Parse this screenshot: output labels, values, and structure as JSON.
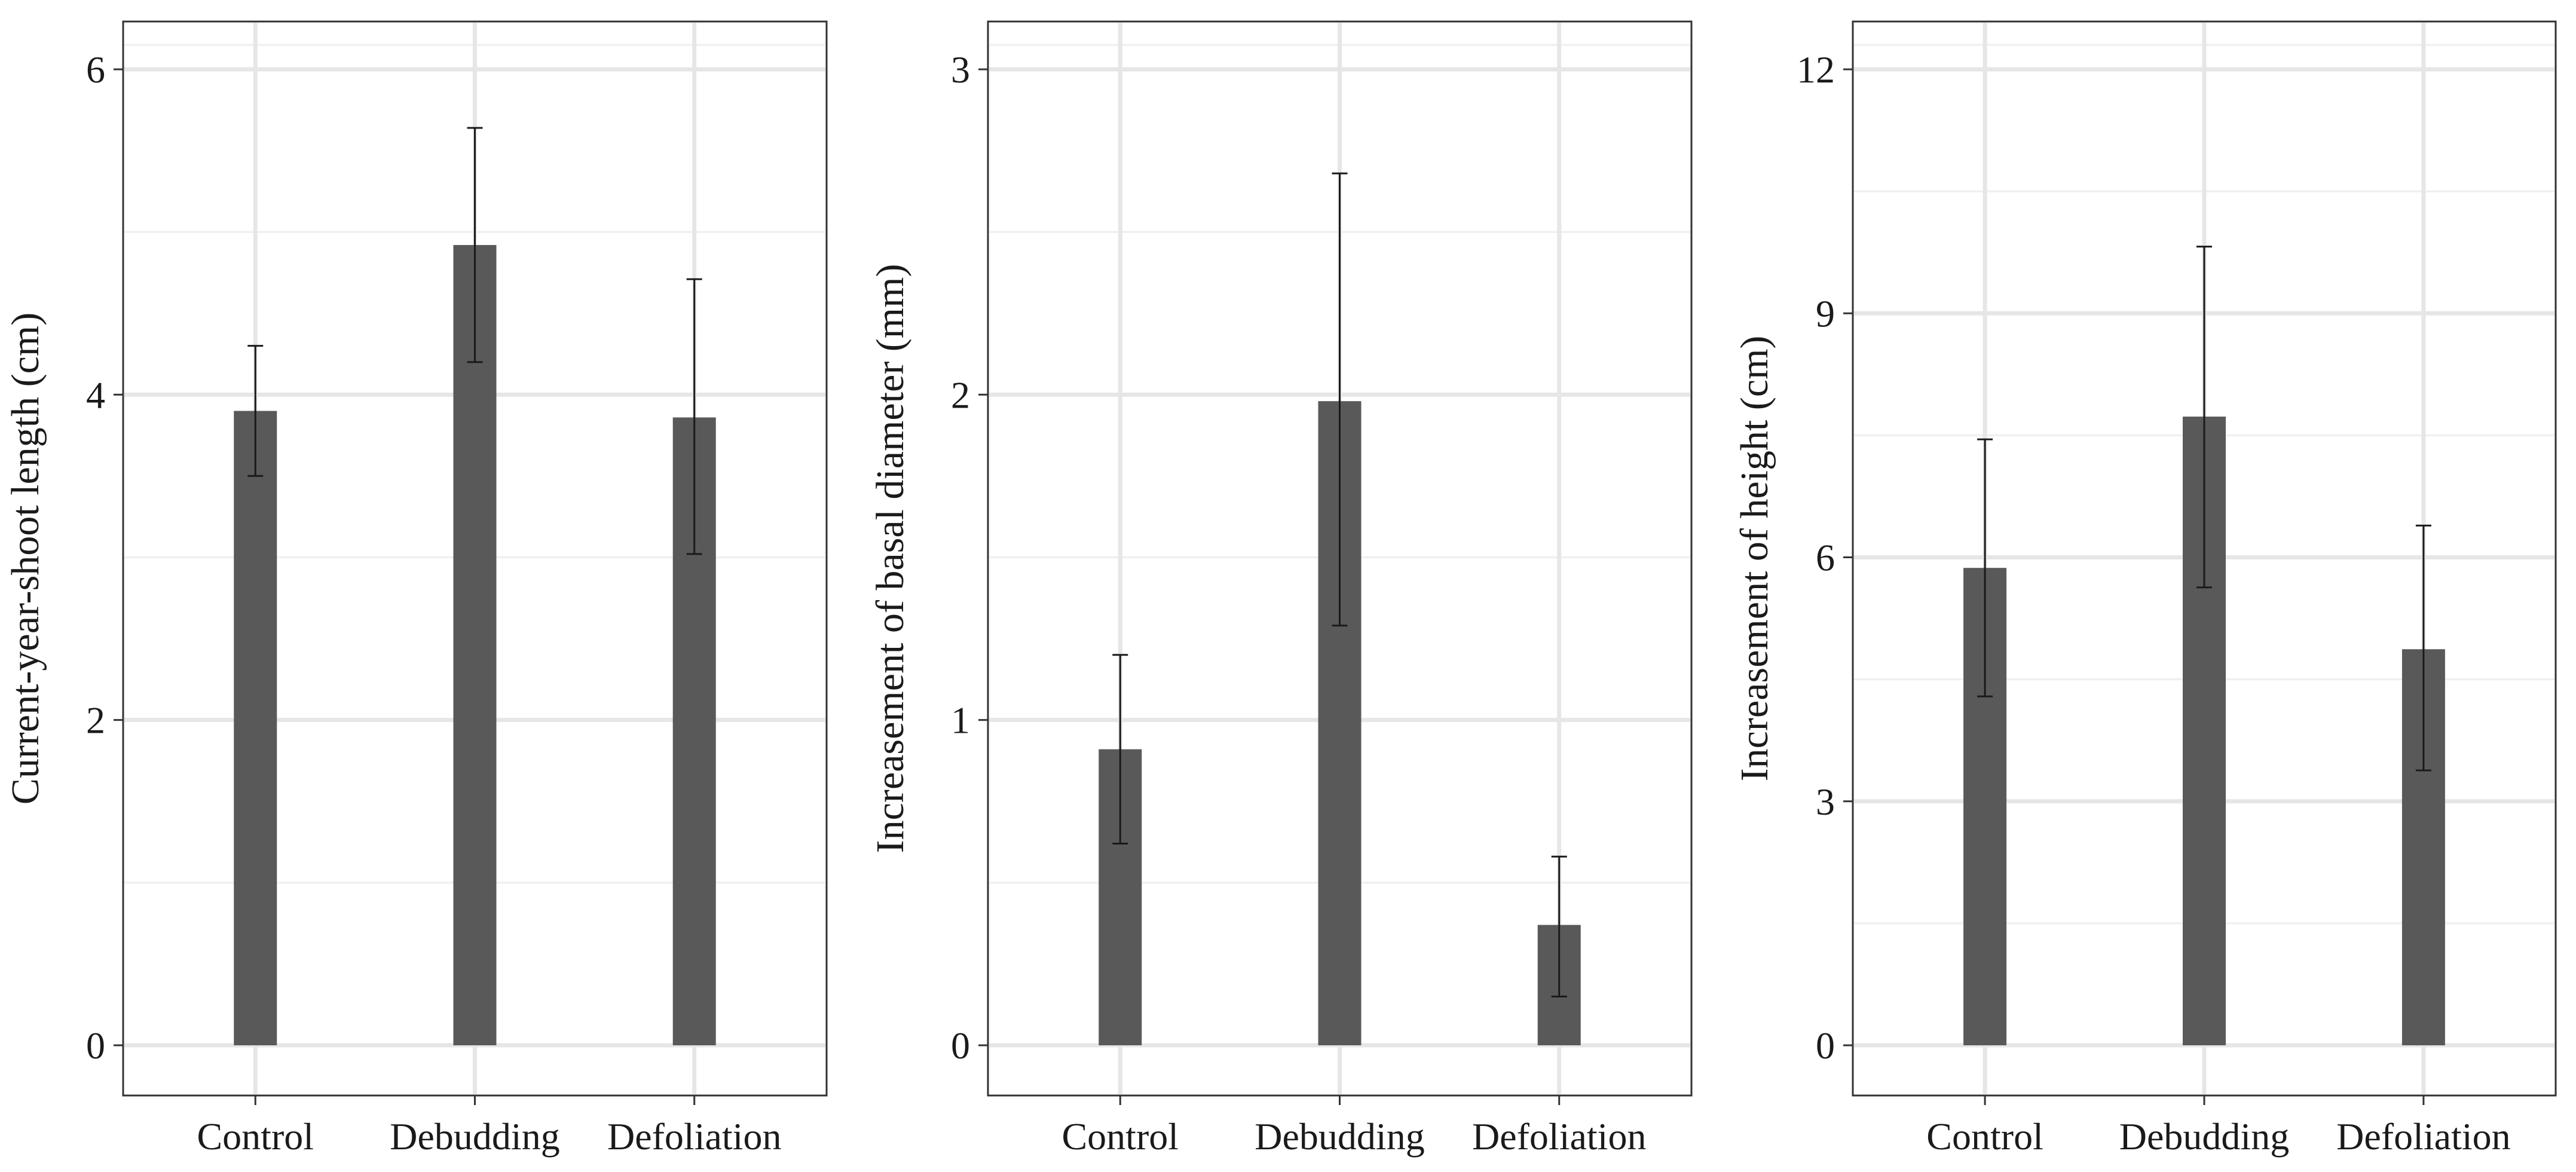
{
  "chart_data": [
    {
      "type": "bar",
      "categories": [
        "Control",
        "Debudding",
        "Defoliation"
      ],
      "values": [
        3.9,
        4.92,
        3.86
      ],
      "error_low": [
        3.5,
        4.2,
        3.02
      ],
      "error_high": [
        4.3,
        5.64,
        4.71
      ],
      "ylabel": "Current-year-shoot length (cm)",
      "xlabel": "",
      "ylim": [
        0,
        6.3
      ],
      "yticks": [
        0,
        2,
        4,
        6
      ],
      "ytick_labels": [
        "0",
        "2",
        "4",
        "6"
      ],
      "grid": true,
      "bar_color": "#595959"
    },
    {
      "type": "bar",
      "categories": [
        "Control",
        "Debudding",
        "Defoliation"
      ],
      "values": [
        0.91,
        1.98,
        0.37
      ],
      "error_low": [
        0.62,
        1.29,
        0.15
      ],
      "error_high": [
        1.2,
        2.68,
        0.58
      ],
      "ylabel": "Increasement of basal diameter (mm)",
      "xlabel": "",
      "ylim": [
        0,
        3.15
      ],
      "yticks": [
        0,
        1,
        2,
        3
      ],
      "ytick_labels": [
        "0",
        "1",
        "2",
        "3"
      ],
      "grid": true,
      "bar_color": "#595959"
    },
    {
      "type": "bar",
      "categories": [
        "Control",
        "Debudding",
        "Defoliation"
      ],
      "values": [
        5.87,
        7.73,
        4.87
      ],
      "error_low": [
        4.29,
        5.63,
        3.38
      ],
      "error_high": [
        7.45,
        9.82,
        6.39
      ],
      "ylabel": "Increasement of height (cm)",
      "xlabel": "",
      "ylim": [
        0,
        12.6
      ],
      "yticks": [
        0,
        3,
        6,
        9,
        12
      ],
      "ytick_labels": [
        "0",
        "3",
        "6",
        "9",
        "12"
      ],
      "grid": true,
      "bar_color": "#595959"
    }
  ]
}
